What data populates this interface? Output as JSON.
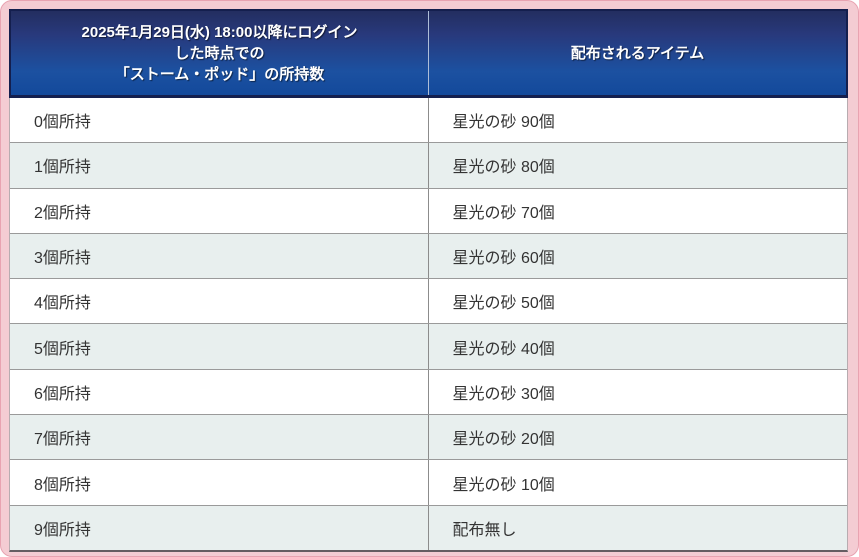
{
  "table": {
    "header": {
      "left_lines": [
        "2025年1月29日(水) 18:00以降にログイン",
        "した時点での",
        "「ストーム・ポッド」の所持数"
      ],
      "right": "配布されるアイテム"
    },
    "rows": [
      {
        "possession": "0個所持",
        "item": "星光の砂 90個"
      },
      {
        "possession": "1個所持",
        "item": "星光の砂 80個"
      },
      {
        "possession": "2個所持",
        "item": "星光の砂 70個"
      },
      {
        "possession": "3個所持",
        "item": "星光の砂 60個"
      },
      {
        "possession": "4個所持",
        "item": "星光の砂 50個"
      },
      {
        "possession": "5個所持",
        "item": "星光の砂 40個"
      },
      {
        "possession": "6個所持",
        "item": "星光の砂 30個"
      },
      {
        "possession": "7個所持",
        "item": "星光の砂 20個"
      },
      {
        "possession": "8個所持",
        "item": "星光の砂 10個"
      },
      {
        "possession": "9個所持",
        "item": "配布無し"
      }
    ]
  },
  "colors": {
    "card_pink": "#f4ccd3",
    "card_pink_edge": "#e8a3b1",
    "header_navy_top": "#232e60",
    "header_blue_bottom": "#13499b",
    "header_border": "#141f4e",
    "row_alt": "#e8efee",
    "row_separator": "#9a9a9a",
    "body_text": "#333333",
    "header_text": "#ffffff"
  }
}
